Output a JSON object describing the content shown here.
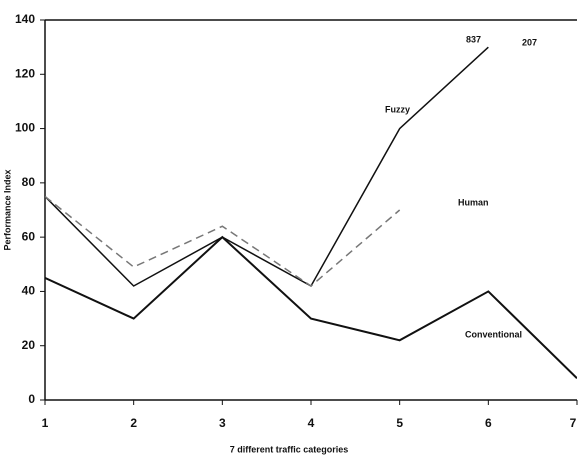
{
  "chart_data": {
    "type": "line",
    "x": [
      1,
      2,
      3,
      4,
      5,
      6,
      7
    ],
    "series": [
      {
        "name": "Fuzzy",
        "color": "#111111",
        "dash": false,
        "values": [
          75,
          42,
          60,
          42,
          100,
          130,
          null
        ]
      },
      {
        "name": "Human",
        "color": "#777777",
        "dash": true,
        "values": [
          75,
          49,
          64,
          42,
          70,
          null,
          null
        ]
      },
      {
        "name": "Conventional",
        "color": "#111111",
        "dash": false,
        "values": [
          45,
          30,
          60,
          30,
          22,
          40,
          8
        ]
      }
    ],
    "annotations": [
      "837",
      "207"
    ],
    "x_label": "7 different traffic categories",
    "y_label": "Performance Index",
    "xlim": [
      1,
      7
    ],
    "ylim": [
      0,
      140
    ],
    "xticks": [
      1,
      2,
      3,
      4,
      5,
      6,
      7
    ],
    "yticks": [
      0,
      20,
      40,
      60,
      80,
      100,
      120,
      140
    ],
    "grid": false
  }
}
